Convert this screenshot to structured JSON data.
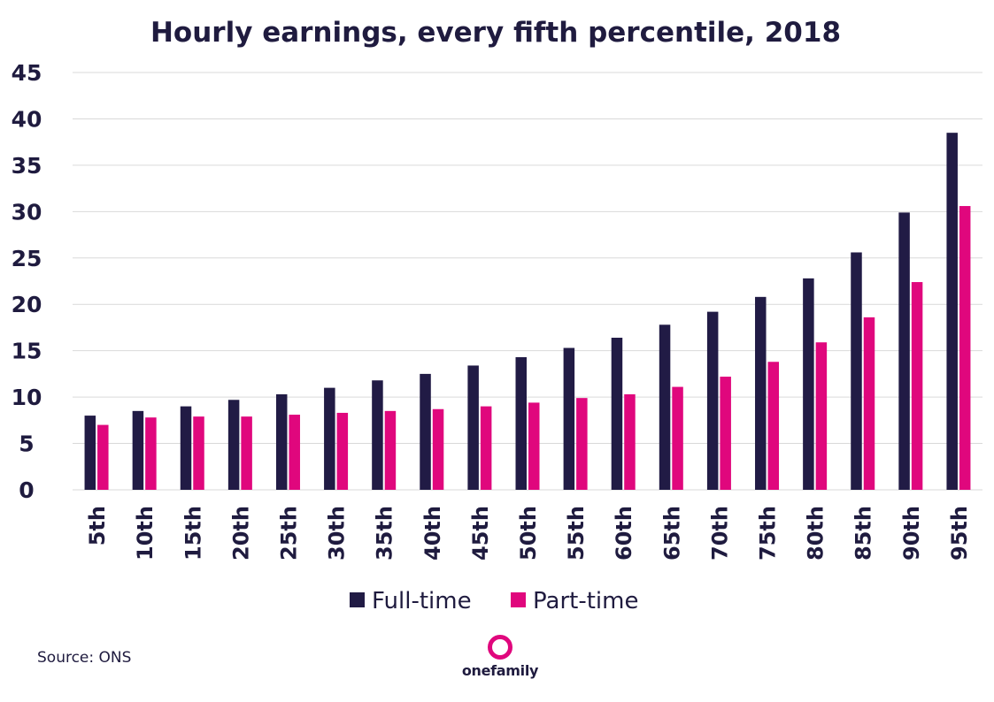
{
  "chart_data": {
    "type": "bar",
    "title": "Hourly earnings, every fifth percentile, 2018",
    "xlabel": "",
    "ylabel": "",
    "ylim": [
      0,
      45
    ],
    "yticks": [
      "0",
      "5",
      "10",
      "15",
      "20",
      "25",
      "30",
      "35",
      "40",
      "45"
    ],
    "categories": [
      "5th",
      "10th",
      "15th",
      "20th",
      "25th",
      "30th",
      "35th",
      "40th",
      "45th",
      "50th",
      "55th",
      "60th",
      "65th",
      "70th",
      "75th",
      "80th",
      "85th",
      "90th",
      "95th"
    ],
    "series": [
      {
        "name": "Full-time",
        "color": "#211b45",
        "values": [
          8.0,
          8.5,
          9.0,
          9.7,
          10.3,
          11.0,
          11.8,
          12.5,
          13.4,
          14.3,
          15.3,
          16.4,
          17.8,
          19.2,
          20.8,
          22.8,
          25.6,
          29.9,
          38.5
        ]
      },
      {
        "name": "Part-time",
        "color": "#e0077d",
        "values": [
          7.0,
          7.8,
          7.9,
          7.9,
          8.1,
          8.3,
          8.5,
          8.7,
          9.0,
          9.4,
          9.9,
          10.3,
          11.1,
          12.2,
          13.8,
          15.9,
          18.6,
          22.4,
          30.6
        ]
      }
    ],
    "legend": "bottom",
    "grid": true
  },
  "footer": {
    "source": "Source: ONS",
    "logo_text": "onefamily",
    "logo_color": "#e0077d"
  }
}
